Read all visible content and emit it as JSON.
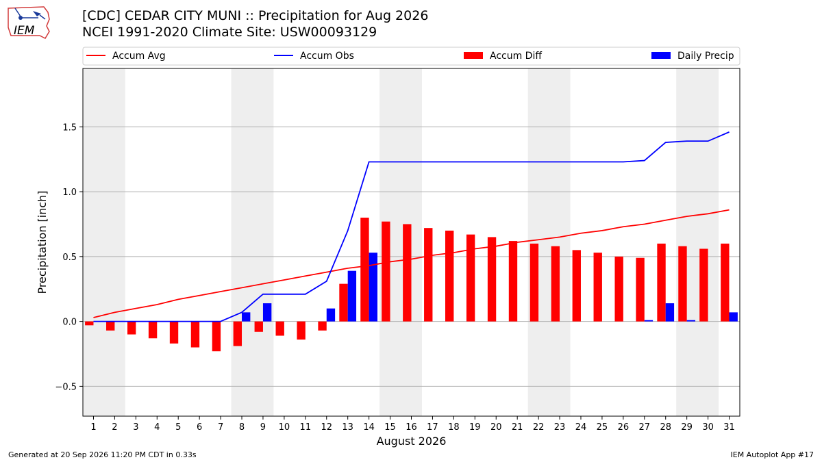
{
  "header": {
    "title_line1": "[CDC] CEDAR CITY MUNI :: Precipitation for Aug 2026",
    "title_line2": "NCEI 1991-2020 Climate Site: USW00093129",
    "logo_text": "IEM"
  },
  "footer": {
    "generated": "Generated at 20 Sep 2026 11:20 PM CDT in 0.33s",
    "app": "IEM Autoplot App #17"
  },
  "chart_data": {
    "type": "bar",
    "xlabel": "August 2026",
    "ylabel": "Precipitation [inch]",
    "ylim": [
      -0.73,
      1.95
    ],
    "yticks": [
      -0.5,
      0.0,
      0.5,
      1.0,
      1.5
    ],
    "ytick_labels": [
      "−0.5",
      "0.0",
      "0.5",
      "1.0",
      "1.5"
    ],
    "x": [
      1,
      2,
      3,
      4,
      5,
      6,
      7,
      8,
      9,
      10,
      11,
      12,
      13,
      14,
      15,
      16,
      17,
      18,
      19,
      20,
      21,
      22,
      23,
      24,
      25,
      26,
      27,
      28,
      29,
      30,
      31
    ],
    "x_labels": [
      "1",
      "2",
      "3",
      "4",
      "5",
      "6",
      "7",
      "8",
      "9",
      "10",
      "11",
      "12",
      "13",
      "14",
      "15",
      "16",
      "17",
      "18",
      "19",
      "20",
      "21",
      "22",
      "23",
      "24",
      "25",
      "26",
      "27",
      "28",
      "29",
      "30",
      "31"
    ],
    "weekend_bands": [
      [
        1,
        2
      ],
      [
        8,
        9
      ],
      [
        15,
        16
      ],
      [
        22,
        23
      ],
      [
        29,
        30
      ]
    ],
    "grid": "horizontal",
    "legend_position": "top",
    "series": [
      {
        "name": "Accum Avg",
        "kind": "line",
        "color": "#ff0000",
        "values": [
          0.03,
          0.07,
          0.1,
          0.13,
          0.17,
          0.2,
          0.23,
          0.26,
          0.29,
          0.32,
          0.35,
          0.38,
          0.41,
          0.43,
          0.46,
          0.48,
          0.51,
          0.53,
          0.56,
          0.58,
          0.61,
          0.63,
          0.65,
          0.68,
          0.7,
          0.73,
          0.75,
          0.78,
          0.81,
          0.83,
          0.86
        ]
      },
      {
        "name": "Accum Obs",
        "kind": "line",
        "color": "#0000ff",
        "values": [
          0.0,
          0.0,
          0.0,
          0.0,
          0.0,
          0.0,
          0.0,
          0.07,
          0.21,
          0.21,
          0.21,
          0.31,
          0.7,
          1.23,
          1.23,
          1.23,
          1.23,
          1.23,
          1.23,
          1.23,
          1.23,
          1.23,
          1.23,
          1.23,
          1.23,
          1.23,
          1.24,
          1.38,
          1.39,
          1.39,
          1.46
        ]
      },
      {
        "name": "Accum Diff",
        "kind": "bar",
        "color": "#ff0000",
        "values": [
          -0.03,
          -0.07,
          -0.1,
          -0.13,
          -0.17,
          -0.2,
          -0.23,
          -0.19,
          -0.08,
          -0.11,
          -0.14,
          -0.07,
          0.29,
          0.8,
          0.77,
          0.75,
          0.72,
          0.7,
          0.67,
          0.65,
          0.62,
          0.6,
          0.58,
          0.55,
          0.53,
          0.5,
          0.49,
          0.6,
          0.58,
          0.56,
          0.6
        ]
      },
      {
        "name": "Daily Precip",
        "kind": "bar",
        "color": "#0000ff",
        "values": [
          0,
          0,
          0,
          0,
          0,
          0,
          0,
          0.07,
          0.14,
          0,
          0,
          0.1,
          0.39,
          0.53,
          0,
          0,
          0,
          0,
          0,
          0,
          0,
          0,
          0,
          0,
          0,
          0,
          0.01,
          0.14,
          0.01,
          0,
          0.07
        ]
      }
    ]
  }
}
